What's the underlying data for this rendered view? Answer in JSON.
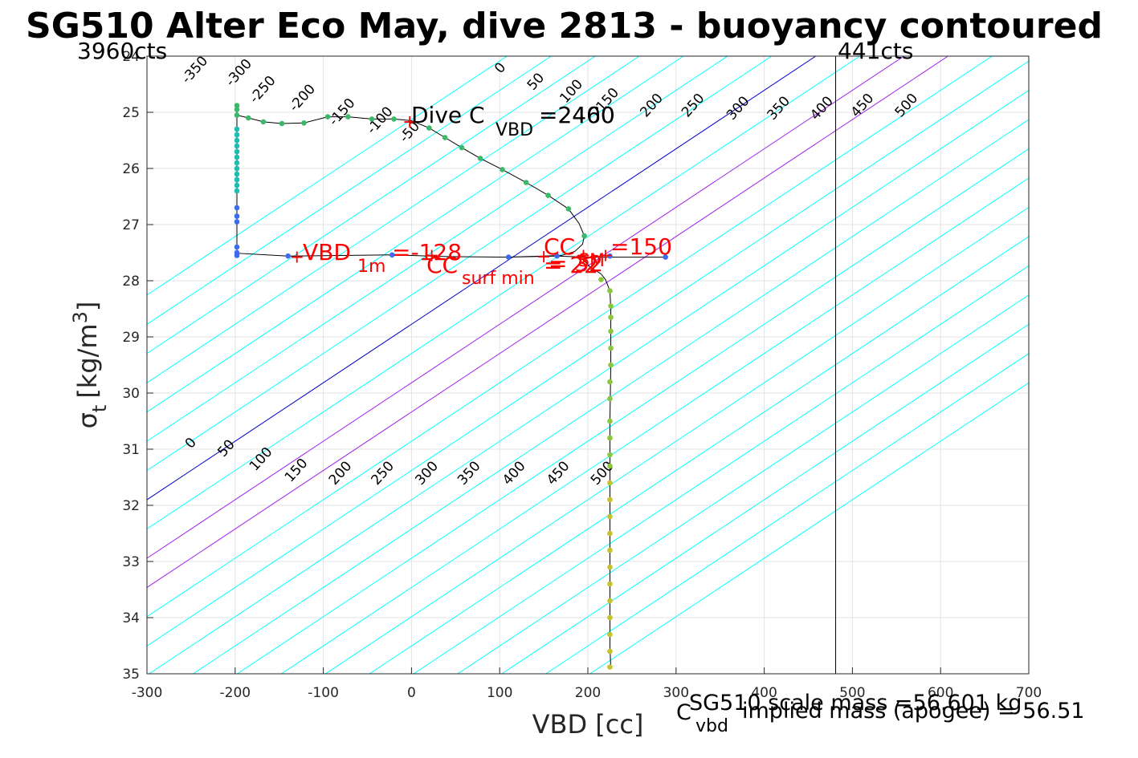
{
  "chart_data": {
    "type": "scatter",
    "title": "SG510 Alter Eco May, dive 2813 - buoyancy contoured",
    "xlabel": "VBD [cc]",
    "ylabel_main": "σ",
    "ylabel_sub": "t",
    "ylabel_units": "[kg/m",
    "ylabel_sup": "3",
    "ylabel_close": "]",
    "xlim": [
      -300,
      700
    ],
    "ylim": [
      35,
      24
    ],
    "y_reversed": true,
    "grid": true,
    "xticks": [
      -300,
      -200,
      -100,
      0,
      100,
      200,
      300,
      400,
      500,
      600,
      700
    ],
    "yticks": [
      24,
      25,
      26,
      27,
      28,
      29,
      30,
      31,
      32,
      33,
      34,
      35
    ],
    "top_left_counts": "3960cts",
    "top_right_counts": "441cts",
    "vertical_line_x": 481,
    "contour_slope_cc_per_sigma": 96,
    "contour_levels": [
      -350,
      -300,
      -250,
      -200,
      -150,
      -100,
      -50,
      0,
      50,
      100,
      150,
      200,
      250,
      300,
      350,
      400,
      450,
      500,
      550,
      600,
      650,
      700,
      750,
      800
    ],
    "highlight_levels": {
      "0": "#0000cc",
      "100": "#a020f0",
      "150": "#a020f0"
    },
    "contour_color": "#00ffff",
    "upper_labels": [
      {
        "text": "-350",
        "x": -254,
        "y": 24.5
      },
      {
        "text": "-300",
        "x": -204,
        "y": 24.55
      },
      {
        "text": "-250",
        "x": -177,
        "y": 24.85
      },
      {
        "text": "-200",
        "x": -132,
        "y": 25.0
      },
      {
        "text": "-150",
        "x": -87,
        "y": 25.25
      },
      {
        "text": "-100",
        "x": -44,
        "y": 25.4
      },
      {
        "text": "-50",
        "x": -7,
        "y": 25.55
      },
      {
        "text": "0",
        "x": 101,
        "y": 24.32
      },
      {
        "text": "50",
        "x": 138,
        "y": 24.62
      },
      {
        "text": "100",
        "x": 175,
        "y": 24.85
      },
      {
        "text": "150",
        "x": 216,
        "y": 25.0
      },
      {
        "text": "200",
        "x": 266,
        "y": 25.1
      },
      {
        "text": "250",
        "x": 313,
        "y": 25.1
      },
      {
        "text": "300",
        "x": 364,
        "y": 25.15
      },
      {
        "text": "350",
        "x": 410,
        "y": 25.15
      },
      {
        "text": "400",
        "x": 459,
        "y": 25.15
      },
      {
        "text": "450",
        "x": 505,
        "y": 25.1
      },
      {
        "text": "500",
        "x": 555,
        "y": 25.1
      }
    ],
    "lower_labels": [
      {
        "text": "0",
        "x": -250,
        "y": 31.0
      },
      {
        "text": "50",
        "x": -213,
        "y": 31.15
      },
      {
        "text": "100",
        "x": -177,
        "y": 31.4
      },
      {
        "text": "150",
        "x": -137,
        "y": 31.6
      },
      {
        "text": "200",
        "x": -87,
        "y": 31.65
      },
      {
        "text": "250",
        "x": -39,
        "y": 31.65
      },
      {
        "text": "300",
        "x": 11,
        "y": 31.65
      },
      {
        "text": "350",
        "x": 59,
        "y": 31.65
      },
      {
        "text": "400",
        "x": 110,
        "y": 31.65
      },
      {
        "text": "450",
        "x": 160,
        "y": 31.65
      },
      {
        "text": "500",
        "x": 210,
        "y": 31.65
      }
    ],
    "profile": [
      [
        -198,
        24.88
      ],
      [
        -198,
        25.05
      ],
      [
        -185,
        25.1
      ],
      [
        -168,
        25.17
      ],
      [
        -147,
        25.2
      ],
      [
        -122,
        25.19
      ],
      [
        -95,
        25.08
      ],
      [
        -72,
        25.08
      ],
      [
        -45,
        25.12
      ],
      [
        -20,
        25.12
      ],
      [
        0,
        25.15
      ],
      [
        20,
        25.28
      ],
      [
        38,
        25.45
      ],
      [
        57,
        25.63
      ],
      [
        78,
        25.82
      ],
      [
        103,
        26.02
      ],
      [
        130,
        26.25
      ],
      [
        155,
        26.48
      ],
      [
        178,
        26.72
      ],
      [
        190,
        26.98
      ],
      [
        196,
        27.2
      ],
      [
        194,
        27.35
      ],
      [
        185,
        27.48
      ],
      [
        170,
        27.55
      ],
      [
        110,
        27.58
      ],
      [
        40,
        27.57
      ],
      [
        -22,
        27.54
      ],
      [
        -80,
        27.55
      ],
      [
        -140,
        27.56
      ],
      [
        -198,
        27.51
      ],
      [
        -198,
        27.4
      ],
      [
        -198,
        27.0
      ],
      [
        -198,
        26.7
      ],
      [
        -198,
        26.3
      ],
      [
        -198,
        26.0
      ],
      [
        -198,
        25.7
      ],
      [
        -198,
        25.4
      ],
      [
        -198,
        25.05
      ],
      [
        -198,
        27.51
      ],
      [
        -140,
        27.56
      ],
      [
        -80,
        27.55
      ],
      [
        -22,
        27.54
      ],
      [
        40,
        27.57
      ],
      [
        110,
        27.58
      ],
      [
        165,
        27.56
      ],
      [
        200,
        27.58
      ],
      [
        225,
        27.58
      ],
      [
        288,
        27.58
      ]
    ],
    "ascent_line": [
      [
        194,
        27.6
      ],
      [
        202,
        27.75
      ],
      [
        215,
        27.88
      ],
      [
        220,
        27.98
      ],
      [
        225,
        28.18
      ],
      [
        226,
        28.5
      ],
      [
        226,
        29.5
      ],
      [
        225,
        30.5
      ],
      [
        225,
        31.5
      ],
      [
        225,
        32.5
      ],
      [
        225,
        33.5
      ],
      [
        225,
        34.5
      ],
      [
        226,
        34.9
      ]
    ],
    "points_green": [
      [
        -198,
        24.88
      ],
      [
        -198,
        24.95
      ],
      [
        -198,
        25.05
      ],
      [
        -185,
        25.1
      ],
      [
        -168,
        25.17
      ],
      [
        -147,
        25.2
      ],
      [
        -122,
        25.19
      ],
      [
        -95,
        25.08
      ],
      [
        -72,
        25.08
      ],
      [
        -45,
        25.12
      ],
      [
        -20,
        25.12
      ],
      [
        20,
        25.28
      ],
      [
        38,
        25.45
      ],
      [
        57,
        25.63
      ],
      [
        78,
        25.82
      ],
      [
        103,
        26.02
      ],
      [
        130,
        26.25
      ],
      [
        155,
        26.48
      ],
      [
        178,
        26.72
      ],
      [
        196,
        27.2
      ]
    ],
    "points_teal": [
      [
        -198,
        25.3
      ],
      [
        -198,
        25.4
      ],
      [
        -198,
        25.5
      ],
      [
        -198,
        25.6
      ],
      [
        -198,
        25.7
      ],
      [
        -198,
        25.8
      ],
      [
        -198,
        25.9
      ],
      [
        -198,
        26.0
      ],
      [
        -198,
        26.1
      ],
      [
        -198,
        26.2
      ],
      [
        -198,
        26.3
      ],
      [
        -198,
        26.4
      ]
    ],
    "points_blue": [
      [
        -198,
        26.7
      ],
      [
        -198,
        26.85
      ],
      [
        -198,
        26.95
      ],
      [
        -198,
        27.4
      ],
      [
        -198,
        27.5
      ],
      [
        -198,
        27.55
      ],
      [
        -140,
        27.56
      ],
      [
        -22,
        27.54
      ],
      [
        110,
        27.58
      ],
      [
        165,
        27.56
      ],
      [
        225,
        27.56
      ],
      [
        288,
        27.58
      ]
    ],
    "points_lime": [
      [
        215,
        27.98
      ],
      [
        225,
        28.18
      ],
      [
        226,
        28.45
      ],
      [
        226,
        28.65
      ],
      [
        226,
        28.9
      ],
      [
        226,
        29.2
      ],
      [
        226,
        29.5
      ],
      [
        225,
        29.8
      ],
      [
        225,
        30.1
      ],
      [
        225,
        30.5
      ],
      [
        225,
        30.8
      ],
      [
        225,
        31.1
      ],
      [
        225,
        31.3
      ]
    ],
    "points_yellow": [
      [
        225,
        31.6
      ],
      [
        225,
        31.9
      ],
      [
        225,
        32.2
      ],
      [
        225,
        32.5
      ],
      [
        225,
        32.8
      ],
      [
        225,
        33.1
      ],
      [
        225,
        33.4
      ],
      [
        225,
        33.7
      ],
      [
        225,
        34.0
      ],
      [
        225,
        34.3
      ],
      [
        225,
        34.6
      ],
      [
        225,
        34.88
      ]
    ],
    "red_markers": [
      [
        -2,
        25.17
      ],
      [
        -130,
        27.58
      ],
      [
        23,
        27.55
      ],
      [
        150,
        27.57
      ],
      [
        195,
        27.55
      ],
      [
        220,
        27.55
      ]
    ],
    "annotations": {
      "dive_c_main": "Dive C",
      "dive_c_sub": "VBD",
      "dive_c_val": "=2400",
      "dive_c_overlap": "=2460",
      "vbd1m_main": "VBD",
      "vbd1m_sub": "1m",
      "vbd1m_val": "=-128",
      "ccsurf_main": "CC",
      "ccsurf_sub": "surf min",
      "ccsurf_val": "= 22",
      "ccsm_main": "CC",
      "ccsm_sub": "SM",
      "ccsm_val": "=150",
      "ccsm_overlap": "= 32",
      "cvbd_main": "C",
      "cvbd_sub": "vbd",
      "scale_mass": "SG510 scale mass =56.601 kg",
      "implied_mass": "implied mass (apogee) = 56.51"
    }
  }
}
